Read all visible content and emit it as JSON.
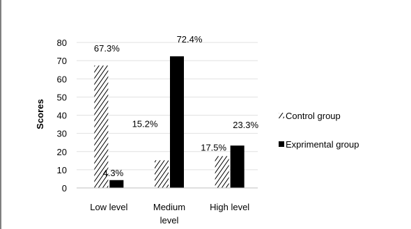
{
  "chart_data": {
    "type": "bar",
    "ylabel": "Scores",
    "xlabel": "",
    "ylim": [
      0,
      80
    ],
    "yticks": [
      0,
      10,
      20,
      30,
      40,
      50,
      60,
      70,
      80
    ],
    "categories": [
      "Low level",
      "Medium level",
      "High level"
    ],
    "category_lines": [
      [
        "Low level"
      ],
      [
        "Medium",
        "level"
      ],
      [
        "High level"
      ]
    ],
    "series": [
      {
        "name": "Control group",
        "values": [
          67.3,
          15.2,
          17.5
        ],
        "labels": [
          "67.3%",
          "15.2%",
          "17.5%"
        ],
        "fill": "hatched",
        "color": "#000000"
      },
      {
        "name": "Exprimental group",
        "values": [
          4.3,
          72.4,
          23.3
        ],
        "labels": [
          "4.3%",
          "72.4%",
          "23.3%"
        ],
        "fill": "solid",
        "color": "#000000"
      }
    ],
    "grid": true,
    "legend_position": "right"
  }
}
